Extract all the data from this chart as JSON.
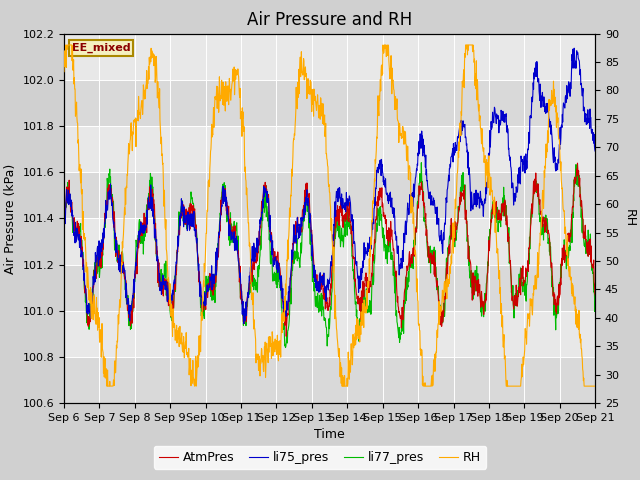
{
  "title": "Air Pressure and RH",
  "xlabel": "Time",
  "ylabel_left": "Air Pressure (kPa)",
  "ylabel_right": "RH",
  "annotation": "EE_mixed",
  "ylim_left": [
    100.6,
    102.2
  ],
  "ylim_right": [
    25,
    90
  ],
  "yticks_left": [
    100.6,
    100.8,
    101.0,
    101.2,
    101.4,
    101.6,
    101.8,
    102.0,
    102.2
  ],
  "yticks_right": [
    25,
    30,
    35,
    40,
    45,
    50,
    55,
    60,
    65,
    70,
    75,
    80,
    85,
    90
  ],
  "xtick_labels": [
    "Sep 6",
    "Sep 7",
    "Sep 8",
    "Sep 9",
    "Sep 10",
    "Sep 11",
    "Sep 12",
    "Sep 13",
    "Sep 14",
    "Sep 15",
    "Sep 16",
    "Sep 17",
    "Sep 18",
    "Sep 19",
    "Sep 20",
    "Sep 21"
  ],
  "legend_labels": [
    "AtmPres",
    "li75_pres",
    "li77_pres",
    "RH"
  ],
  "colors": {
    "AtmPres": "#cc0000",
    "li75_pres": "#0000cc",
    "li77_pres": "#00bb00",
    "RH": "#ffaa00"
  },
  "fig_bg": "#d0d0d0",
  "plot_bg": "#e8e8e8",
  "band_color": "#d8d8d8",
  "title_fontsize": 12,
  "axis_fontsize": 9,
  "tick_fontsize": 8,
  "legend_fontsize": 9
}
